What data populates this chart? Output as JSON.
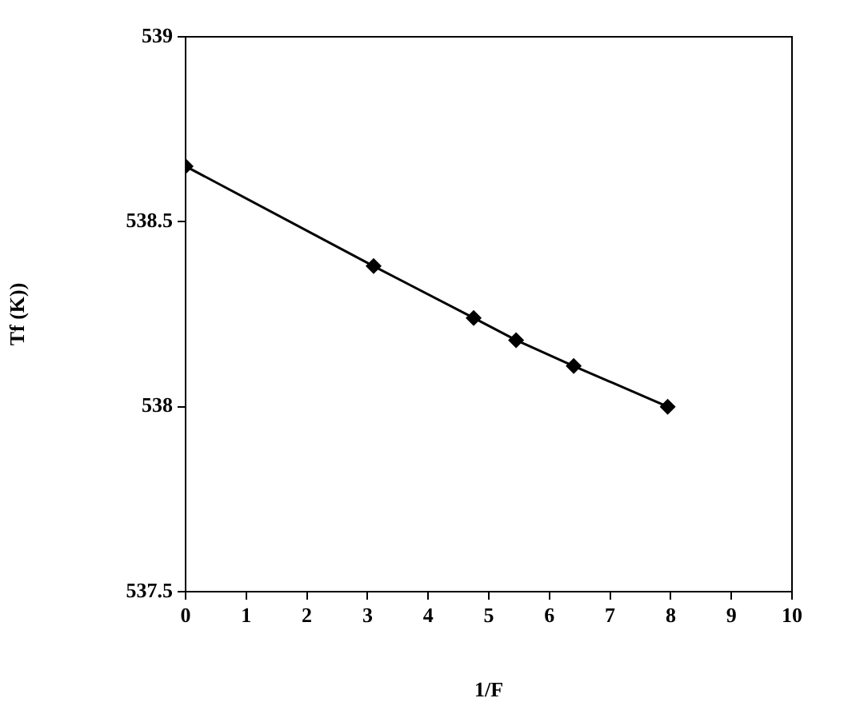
{
  "chart_data": {
    "type": "line",
    "xlabel": "1/F",
    "ylabel": "Tf (K))",
    "x": [
      0,
      3.1,
      4.75,
      5.45,
      6.4,
      7.95
    ],
    "series": [
      {
        "color": "#000000",
        "values": [
          538.65,
          538.38,
          538.24,
          538.18,
          538.11,
          538.0
        ]
      }
    ],
    "xlim": [
      0,
      10
    ],
    "xticks": [
      0,
      1,
      2,
      3,
      4,
      5,
      6,
      7,
      8,
      9,
      10
    ],
    "ylim": [
      537.5,
      539
    ],
    "yticks": [
      537.5,
      538,
      538.5,
      539
    ],
    "grid": false,
    "legend": false,
    "marker": "diamond",
    "line_style": "solid"
  }
}
